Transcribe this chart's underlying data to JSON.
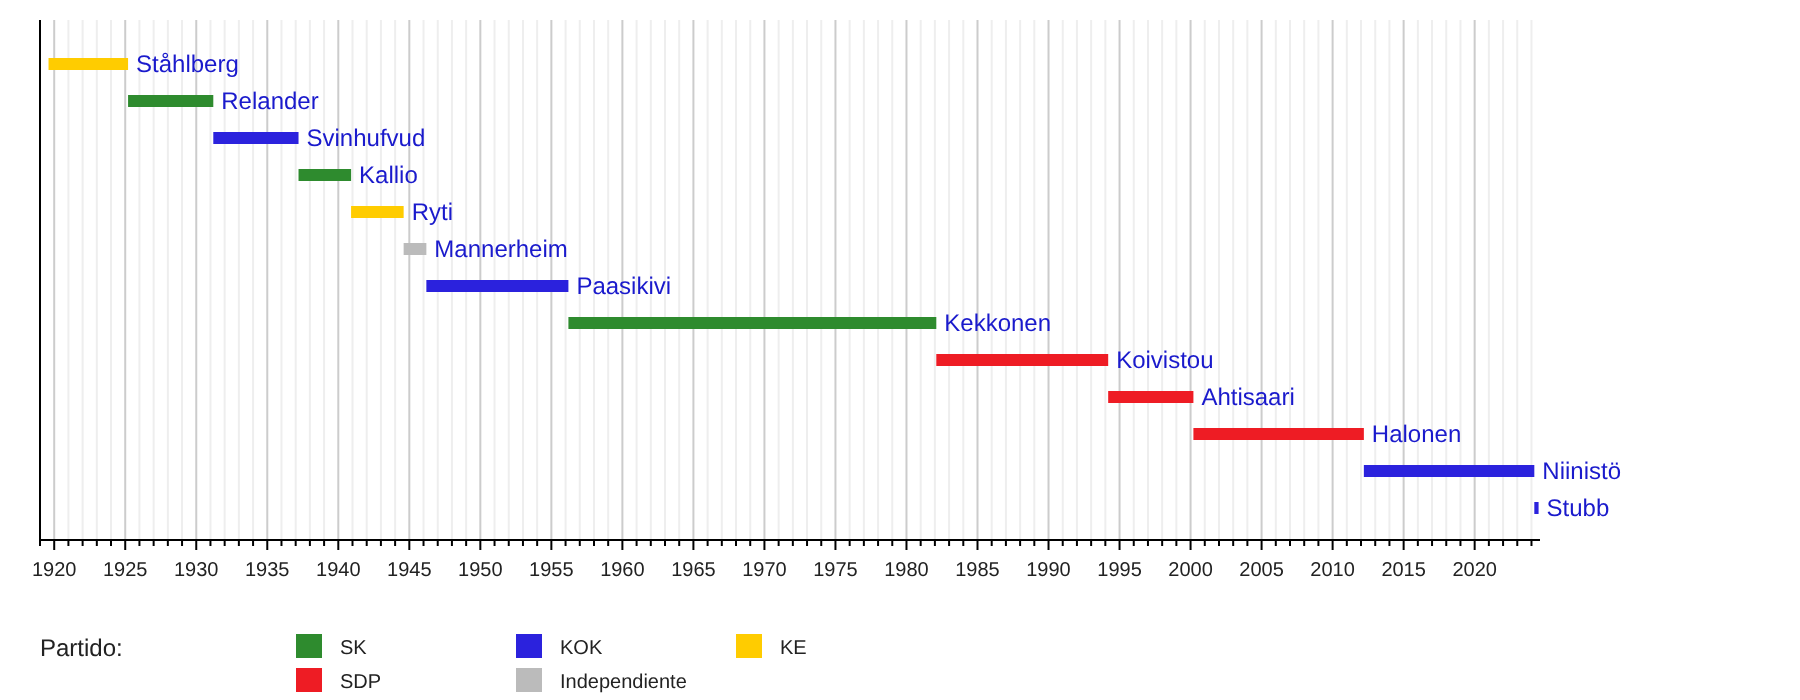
{
  "chart_data": {
    "type": "bar",
    "orientation": "horizontal",
    "legend_title": "Partido:",
    "legend": "bottom",
    "grid": "x",
    "categories": [
      "Ståhlberg",
      "Relander",
      "Svinhufvud",
      "Kallio",
      "Ryti",
      "Mannerheim",
      "Paasikivi",
      "Kekkonen",
      "Koivistou",
      "Ahtisaari",
      "Halonen",
      "Niinistö",
      "Stubb"
    ],
    "series": [
      {
        "name": "SK",
        "color": "#2e8b2e",
        "base": [
          null,
          1925.2,
          null,
          1937.2,
          null,
          null,
          null,
          1956.2,
          null,
          null,
          null,
          null,
          null
        ],
        "values": [
          null,
          6.0,
          null,
          3.7,
          null,
          null,
          null,
          25.9,
          null,
          null,
          null,
          null,
          null
        ]
      },
      {
        "name": "SDP",
        "color": "#ee1c24",
        "base": [
          null,
          null,
          null,
          null,
          null,
          null,
          null,
          null,
          1982.1,
          1994.2,
          2000.2,
          null,
          null
        ],
        "values": [
          null,
          null,
          null,
          null,
          null,
          null,
          null,
          null,
          12.1,
          6.0,
          12.0,
          null,
          null
        ]
      },
      {
        "name": "KOK",
        "color": "#2b22dd",
        "base": [
          null,
          null,
          1931.2,
          null,
          null,
          null,
          1946.2,
          null,
          null,
          null,
          null,
          2012.2,
          2024.2
        ],
        "values": [
          null,
          null,
          6.0,
          null,
          null,
          null,
          10.0,
          null,
          null,
          null,
          null,
          12.0,
          0.3
        ]
      },
      {
        "name": "Independiente",
        "color": "#bbbbbb",
        "base": [
          null,
          null,
          null,
          null,
          null,
          1944.6,
          null,
          null,
          null,
          null,
          null,
          null,
          null
        ],
        "values": [
          null,
          null,
          null,
          null,
          null,
          1.6,
          null,
          null,
          null,
          null,
          null,
          null,
          null
        ]
      },
      {
        "name": "KE",
        "color": "#ffcc00",
        "base": [
          1919.6,
          null,
          null,
          null,
          1940.9,
          null,
          null,
          null,
          null,
          null,
          null,
          null,
          null
        ],
        "values": [
          5.6,
          null,
          null,
          null,
          3.7,
          null,
          null,
          null,
          null,
          null,
          null,
          null,
          null
        ]
      }
    ],
    "xlim": [
      1919,
      2024.6
    ],
    "xticks": [
      {
        "value": 1919,
        "label": null
      },
      1920,
      {
        "value": 1921,
        "label": null
      },
      {
        "value": 1922,
        "label": null
      },
      {
        "value": 1923,
        "label": null
      },
      {
        "value": 1924,
        "label": null
      },
      1925,
      {
        "value": 1926,
        "label": null
      },
      {
        "value": 1927,
        "label": null
      },
      {
        "value": 1928,
        "label": null
      },
      {
        "value": 1929,
        "label": null
      },
      1930,
      {
        "value": 1931,
        "label": null
      },
      {
        "value": 1932,
        "label": null
      },
      {
        "value": 1933,
        "label": null
      },
      {
        "value": 1934,
        "label": null
      },
      1935,
      {
        "value": 1936,
        "label": null
      },
      {
        "value": 1937,
        "label": null
      },
      {
        "value": 1938,
        "label": null
      },
      {
        "value": 1939,
        "label": null
      },
      1940,
      {
        "value": 1941,
        "label": null
      },
      {
        "value": 1942,
        "label": null
      },
      {
        "value": 1943,
        "label": null
      },
      {
        "value": 1944,
        "label": null
      },
      1945,
      {
        "value": 1946,
        "label": null
      },
      {
        "value": 1947,
        "label": null
      },
      {
        "value": 1948,
        "label": null
      },
      {
        "value": 1949,
        "label": null
      },
      1950,
      {
        "value": 1951,
        "label": null
      },
      {
        "value": 1952,
        "label": null
      },
      {
        "value": 1953,
        "label": null
      },
      {
        "value": 1954,
        "label": null
      },
      1955,
      {
        "value": 1956,
        "label": null
      },
      {
        "value": 1957,
        "label": null
      },
      {
        "value": 1958,
        "label": null
      },
      {
        "value": 1959,
        "label": null
      },
      1960,
      {
        "value": 1961,
        "label": null
      },
      {
        "value": 1962,
        "label": null
      },
      {
        "value": 1963,
        "label": null
      },
      {
        "value": 1964,
        "label": null
      },
      1965,
      {
        "value": 1966,
        "label": null
      },
      {
        "value": 1967,
        "label": null
      },
      {
        "value": 1968,
        "label": null
      },
      {
        "value": 1969,
        "label": null
      },
      1970,
      {
        "value": 1971,
        "label": null
      },
      {
        "value": 1972,
        "label": null
      },
      {
        "value": 1973,
        "label": null
      },
      {
        "value": 1974,
        "label": null
      },
      1975,
      {
        "value": 1976,
        "label": null
      },
      {
        "value": 1977,
        "label": null
      },
      {
        "value": 1978,
        "label": null
      },
      {
        "value": 1979,
        "label": null
      },
      1980,
      {
        "value": 1981,
        "label": null
      },
      {
        "value": 1982,
        "label": null
      },
      {
        "value": 1983,
        "label": null
      },
      {
        "value": 1984,
        "label": null
      },
      1985,
      {
        "value": 1986,
        "label": null
      },
      {
        "value": 1987,
        "label": null
      },
      {
        "value": 1988,
        "label": null
      },
      {
        "value": 1989,
        "label": null
      },
      1990,
      {
        "value": 1991,
        "label": null
      },
      {
        "value": 1992,
        "label": null
      },
      {
        "value": 1993,
        "label": null
      },
      {
        "value": 1994,
        "label": null
      },
      1995,
      {
        "value": 1996,
        "label": null
      },
      {
        "value": 1997,
        "label": null
      },
      {
        "value": 1998,
        "label": null
      },
      {
        "value": 1999,
        "label": null
      },
      2000,
      {
        "value": 2001,
        "label": null
      },
      {
        "value": 2002,
        "label": null
      },
      {
        "value": 2003,
        "label": null
      },
      {
        "value": 2004,
        "label": null
      },
      2005,
      {
        "value": 2006,
        "label": null
      },
      {
        "value": 2007,
        "label": null
      },
      {
        "value": 2008,
        "label": null
      },
      {
        "value": 2009,
        "label": null
      },
      2010,
      {
        "value": 2011,
        "label": null
      },
      {
        "value": 2012,
        "label": null
      },
      {
        "value": 2013,
        "label": null
      },
      {
        "value": 2014,
        "label": null
      },
      2015,
      {
        "value": 2016,
        "label": null
      },
      {
        "value": 2017,
        "label": null
      },
      {
        "value": 2018,
        "label": null
      },
      {
        "value": 2019,
        "label": null
      },
      2020,
      {
        "value": 2021,
        "label": null
      },
      {
        "value": 2022,
        "label": null
      },
      {
        "value": 2023,
        "label": null
      },
      {
        "value": 2024,
        "label": null
      }
    ]
  }
}
